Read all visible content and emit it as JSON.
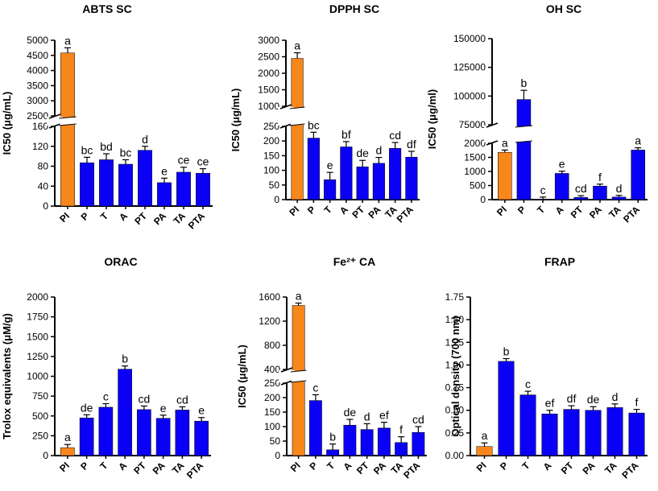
{
  "colors": {
    "highlight": "#f7861b",
    "main": "#0a00f5",
    "axis": "#000000"
  },
  "chart_data": [
    {
      "id": "abts",
      "type": "bar",
      "title": "ABTS SC",
      "ylabel": "IC50 (μg/mL)",
      "categories": [
        "PI",
        "P",
        "T",
        "A",
        "PT",
        "PA",
        "TA",
        "PTA"
      ],
      "values": [
        4580,
        87,
        93,
        84,
        112,
        47,
        68,
        66
      ],
      "errors": [
        170,
        11,
        12,
        9,
        8,
        9,
        10,
        9
      ],
      "letters": [
        "a",
        "bc",
        "bd",
        "bc",
        "d",
        "e",
        "ce",
        "ce"
      ],
      "highlight_index": 0,
      "broken_axis": true,
      "segments": [
        {
          "range": [
            0,
            160
          ],
          "ticks": [
            0,
            40,
            80,
            120,
            160
          ]
        },
        {
          "range": [
            2500,
            5000
          ],
          "ticks": [
            2500,
            3000,
            3500,
            4000,
            4500,
            5000
          ]
        }
      ]
    },
    {
      "id": "dpph",
      "type": "bar",
      "title": "DPPH SC",
      "ylabel": "IC50 (μg/mL)",
      "categories": [
        "PI",
        "P",
        "T",
        "A",
        "PT",
        "PA",
        "TA",
        "PTA"
      ],
      "values": [
        2450,
        210,
        68,
        180,
        112,
        124,
        175,
        145
      ],
      "errors": [
        170,
        20,
        25,
        18,
        22,
        20,
        20,
        20
      ],
      "letters": [
        "a",
        "bc",
        "e",
        "bf",
        "de",
        "d",
        "cd",
        "df"
      ],
      "highlight_index": 0,
      "broken_axis": true,
      "segments": [
        {
          "range": [
            0,
            250
          ],
          "ticks": [
            0,
            50,
            100,
            150,
            200,
            250
          ]
        },
        {
          "range": [
            1000,
            3000
          ],
          "ticks": [
            1000,
            1500,
            2000,
            2500,
            3000
          ]
        }
      ]
    },
    {
      "id": "oh",
      "type": "bar",
      "title": "OH SC",
      "ylabel": "IC50 (μg/ml)",
      "categories": [
        "PI",
        "P",
        "T",
        "A",
        "PT",
        "PA",
        "TA",
        "PTA"
      ],
      "values": [
        1680,
        97000,
        20,
        930,
        80,
        480,
        90,
        1760
      ],
      "errors": [
        80,
        8000,
        70,
        80,
        60,
        70,
        60,
        80
      ],
      "letters": [
        "a",
        "b",
        "c",
        "e",
        "cd",
        "f",
        "d",
        "a"
      ],
      "highlight_index": 0,
      "broken_axis": true,
      "segments": [
        {
          "range": [
            0,
            2000
          ],
          "ticks": [
            0,
            500,
            1000,
            1500,
            2000
          ]
        },
        {
          "range": [
            75000,
            150000
          ],
          "ticks": [
            75000,
            100000,
            125000,
            150000
          ]
        }
      ]
    },
    {
      "id": "orac",
      "type": "bar",
      "title": "ORAC",
      "ylabel": "Trolox equivalents (μM/g)",
      "categories": [
        "PI",
        "P",
        "T",
        "A",
        "PT",
        "PA",
        "TA",
        "PTA"
      ],
      "values": [
        100,
        475,
        610,
        1090,
        580,
        470,
        575,
        435
      ],
      "errors": [
        40,
        40,
        45,
        40,
        45,
        40,
        40,
        45
      ],
      "letters": [
        "a",
        "de",
        "c",
        "b",
        "cd",
        "e",
        "cd",
        "e"
      ],
      "highlight_index": 0,
      "broken_axis": false,
      "segments": [
        {
          "range": [
            0,
            2000
          ],
          "ticks": [
            0,
            250,
            500,
            750,
            1000,
            1250,
            1500,
            1750,
            2000
          ]
        }
      ]
    },
    {
      "id": "fe",
      "type": "bar",
      "title": "Fe²⁺ CA",
      "ylabel": "IC50 (μg/mL)",
      "categories": [
        "PI",
        "P",
        "T",
        "A",
        "PT",
        "PA",
        "TA",
        "PTA"
      ],
      "values": [
        1460,
        190,
        20,
        105,
        90,
        95,
        45,
        80
      ],
      "errors": [
        40,
        20,
        20,
        20,
        20,
        20,
        20,
        20
      ],
      "letters": [
        "a",
        "c",
        "b",
        "de",
        "d",
        "ef",
        "f",
        "cd"
      ],
      "highlight_index": 0,
      "broken_axis": true,
      "segments": [
        {
          "range": [
            0,
            250
          ],
          "ticks": [
            0,
            50,
            100,
            150,
            200,
            250
          ]
        },
        {
          "range": [
            400,
            1600
          ],
          "ticks": [
            400,
            800,
            1200,
            1600
          ]
        }
      ]
    },
    {
      "id": "frap",
      "type": "bar",
      "title": "FRAP",
      "ylabel": "Optical density (700 nm)",
      "categories": [
        "PI",
        "P",
        "T",
        "A",
        "PT",
        "PA",
        "TA",
        "PTA"
      ],
      "values": [
        0.1,
        1.04,
        0.67,
        0.46,
        0.51,
        0.5,
        0.53,
        0.47
      ],
      "errors": [
        0.04,
        0.03,
        0.04,
        0.04,
        0.04,
        0.04,
        0.04,
        0.04
      ],
      "letters": [
        "a",
        "b",
        "c",
        "ef",
        "df",
        "de",
        "d",
        "f"
      ],
      "highlight_index": 0,
      "broken_axis": false,
      "segments": [
        {
          "range": [
            0,
            1.75
          ],
          "ticks": [
            0.0,
            0.25,
            0.5,
            0.75,
            1.0,
            1.25,
            1.5,
            1.75
          ]
        }
      ]
    }
  ]
}
